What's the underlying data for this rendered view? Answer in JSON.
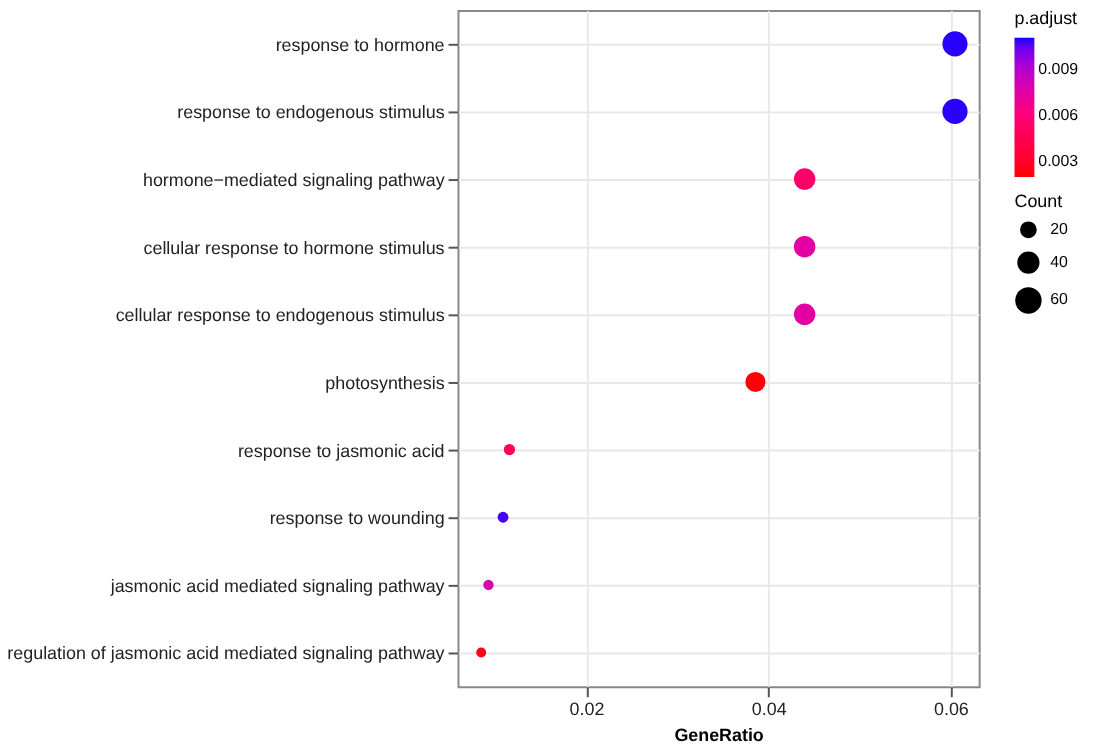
{
  "chart_data": {
    "type": "bubble",
    "xlabel": "GeneRatio",
    "legend_title": "Count",
    "clabel": "p.adjust",
    "categories": [
      "response to hormone",
      "response to endogenous stimulus",
      "hormone−mediated signaling pathway",
      "cellular response to hormone stimulus",
      "cellular response to endogenous stimulus",
      "photosynthesis",
      "response to jasmonic acid",
      "response to wounding",
      "jasmonic acid mediated signaling pathway",
      "regulation of jasmonic acid mediated signaling pathway"
    ],
    "values": [
      0.0605,
      0.0605,
      0.044,
      0.044,
      0.044,
      0.0386,
      0.0116,
      0.0109,
      0.0093,
      0.0085
    ],
    "sizes": [
      69,
      69,
      50,
      50,
      50,
      44,
      13,
      12,
      11,
      10
    ],
    "size_legend": [
      20,
      40,
      60
    ],
    "cvalues": [
      0.011,
      0.011,
      0.0055,
      0.0075,
      0.0075,
      0.0021,
      0.005,
      0.0108,
      0.0078,
      0.0025
    ],
    "clim": [
      0.002,
      0.0111
    ],
    "cticks": [
      0.003,
      0.006,
      0.009
    ],
    "orientation": "horizontal",
    "xlim": [
      0.0059,
      0.0631
    ],
    "xticks": [
      0.02,
      0.04,
      0.06
    ],
    "grid": true
  }
}
